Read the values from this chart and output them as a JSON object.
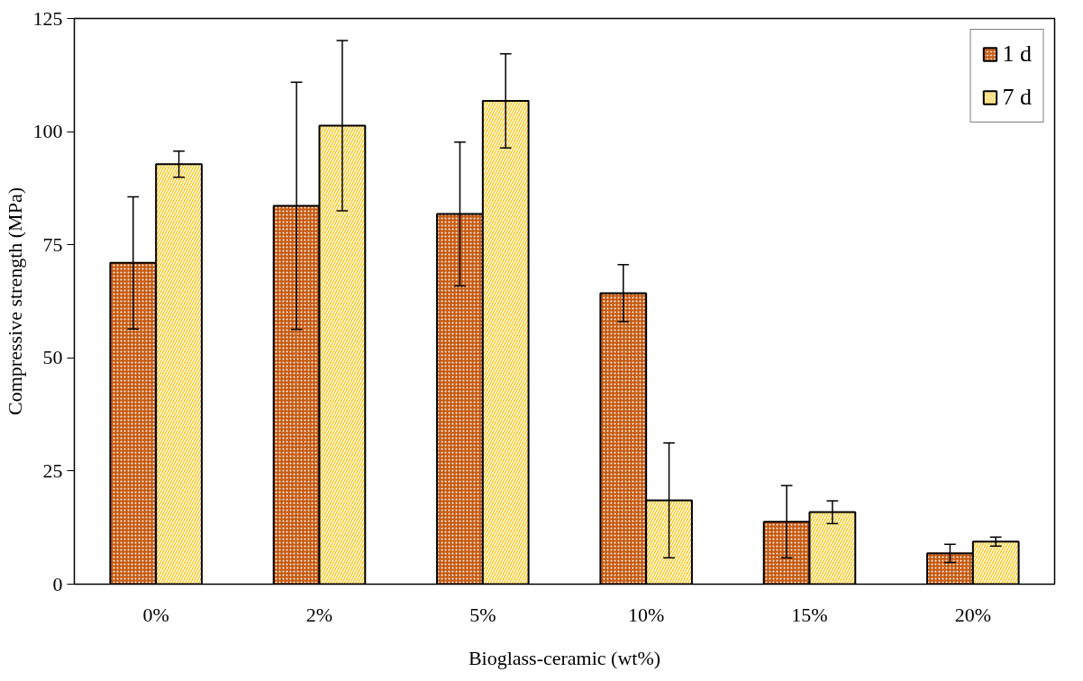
{
  "chart_data": {
    "type": "bar",
    "xlabel": "Bioglass-ceramic (wt%)",
    "ylabel": "Compressive strength (MPa)",
    "categories": [
      "0%",
      "2%",
      "5%",
      "10%",
      "15%",
      "20%"
    ],
    "series": [
      {
        "name": "1 d",
        "color": "#c55a11",
        "values": [
          71.0,
          83.6,
          81.8,
          64.3,
          13.8,
          6.8
        ],
        "errors": [
          14.6,
          27.3,
          15.9,
          6.3,
          8.0,
          2.0
        ]
      },
      {
        "name": "7 d",
        "color": "#ffc000",
        "values": [
          92.8,
          101.3,
          106.8,
          18.5,
          15.9,
          9.4
        ],
        "errors": [
          2.9,
          18.8,
          10.4,
          12.7,
          2.5,
          1.0
        ]
      }
    ],
    "ylim": [
      0,
      125
    ],
    "yticks": [
      0,
      25,
      50,
      75,
      100,
      125
    ],
    "grid": false,
    "legend": "top right"
  }
}
